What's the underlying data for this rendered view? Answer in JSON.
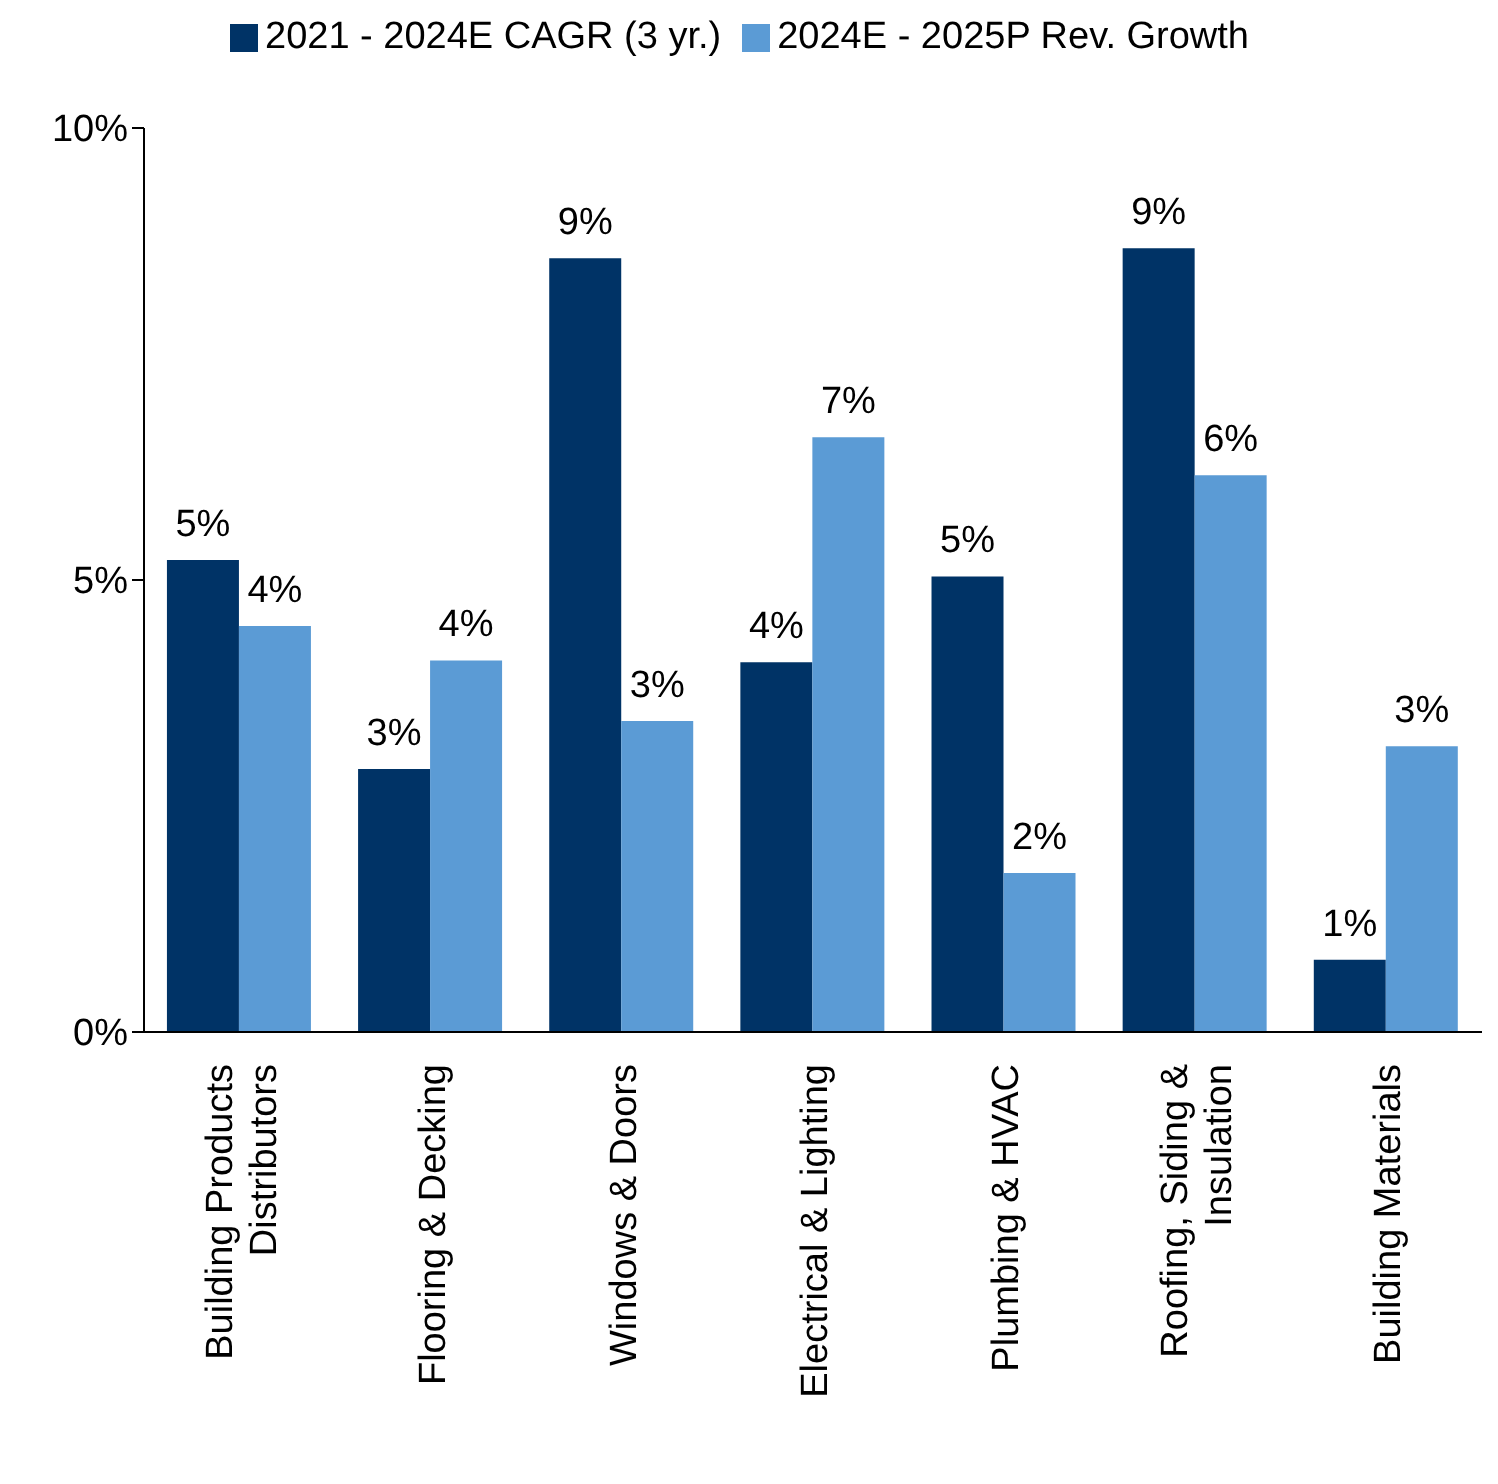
{
  "chart_data": {
    "type": "bar",
    "categories": [
      "Building Products Distributors",
      "Flooring & Decking",
      "Windows & Doors",
      "Electrical & Lighting",
      "Plumbing & HVAC",
      "Roofing, Siding & Insulation",
      "Building Materials"
    ],
    "series": [
      {
        "name": "2021 - 2024E CAGR (3 yr.)",
        "color": "#003366",
        "values": [
          5.22,
          2.91,
          8.56,
          4.09,
          5.04,
          8.67,
          0.8
        ],
        "value_labels": [
          "5%",
          "3%",
          "9%",
          "4%",
          "5%",
          "9%",
          "1%"
        ]
      },
      {
        "name": "2024E - 2025P Rev. Growth",
        "color": "#5b9bd5",
        "values": [
          4.49,
          4.11,
          3.44,
          6.58,
          1.76,
          6.16,
          3.16
        ],
        "value_labels": [
          "4%",
          "4%",
          "3%",
          "7%",
          "2%",
          "6%",
          "3%"
        ]
      }
    ],
    "ylim": [
      0,
      10
    ],
    "yticks": [
      {
        "value": 0,
        "label": "0%"
      },
      {
        "value": 5,
        "label": "5%"
      },
      {
        "value": 10,
        "label": "10%"
      }
    ],
    "grid": false,
    "legend": "top"
  }
}
